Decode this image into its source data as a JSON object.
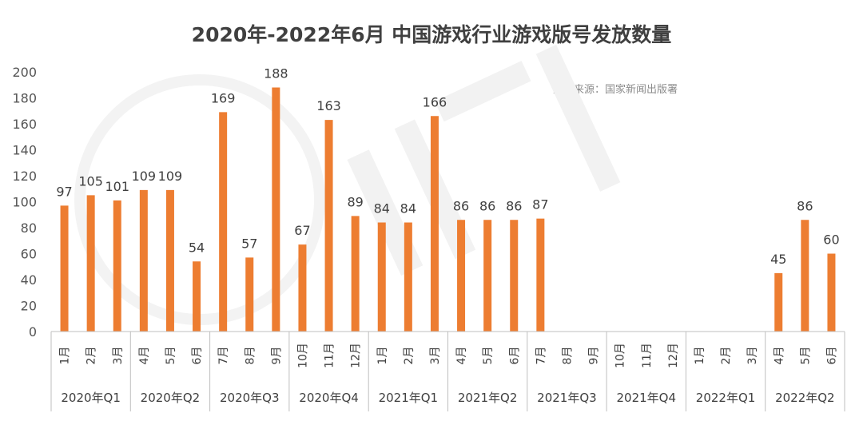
{
  "chart_data": {
    "type": "bar",
    "title": "2020年-2022年6月 中国游戏行业游戏版号发放数量",
    "source": "数据来源：国家新闻出版署",
    "ylim": [
      0,
      200
    ],
    "yticks": [
      0,
      20,
      40,
      60,
      80,
      100,
      120,
      140,
      160,
      180,
      200
    ],
    "bar_color": "#ED7D31",
    "grid": false,
    "months": [
      "1月",
      "2月",
      "3月",
      "4月",
      "5月",
      "6月",
      "7月",
      "8月",
      "9月",
      "10月",
      "11月",
      "12月",
      "1月",
      "2月",
      "3月",
      "4月",
      "5月",
      "6月",
      "7月",
      "8月",
      "9月",
      "10月",
      "11月",
      "12月",
      "1月",
      "2月",
      "3月",
      "4月",
      "5月",
      "6月"
    ],
    "quarters": [
      "2020年Q1",
      "2020年Q2",
      "2020年Q3",
      "2020年Q4",
      "2021年Q1",
      "2021年Q2",
      "2021年Q3",
      "2021年Q4",
      "2022年Q1",
      "2022年Q2"
    ],
    "values": [
      97,
      105,
      101,
      109,
      109,
      54,
      169,
      57,
      188,
      67,
      163,
      89,
      84,
      84,
      166,
      86,
      86,
      86,
      87,
      null,
      null,
      null,
      null,
      null,
      null,
      null,
      null,
      45,
      86,
      60
    ]
  }
}
